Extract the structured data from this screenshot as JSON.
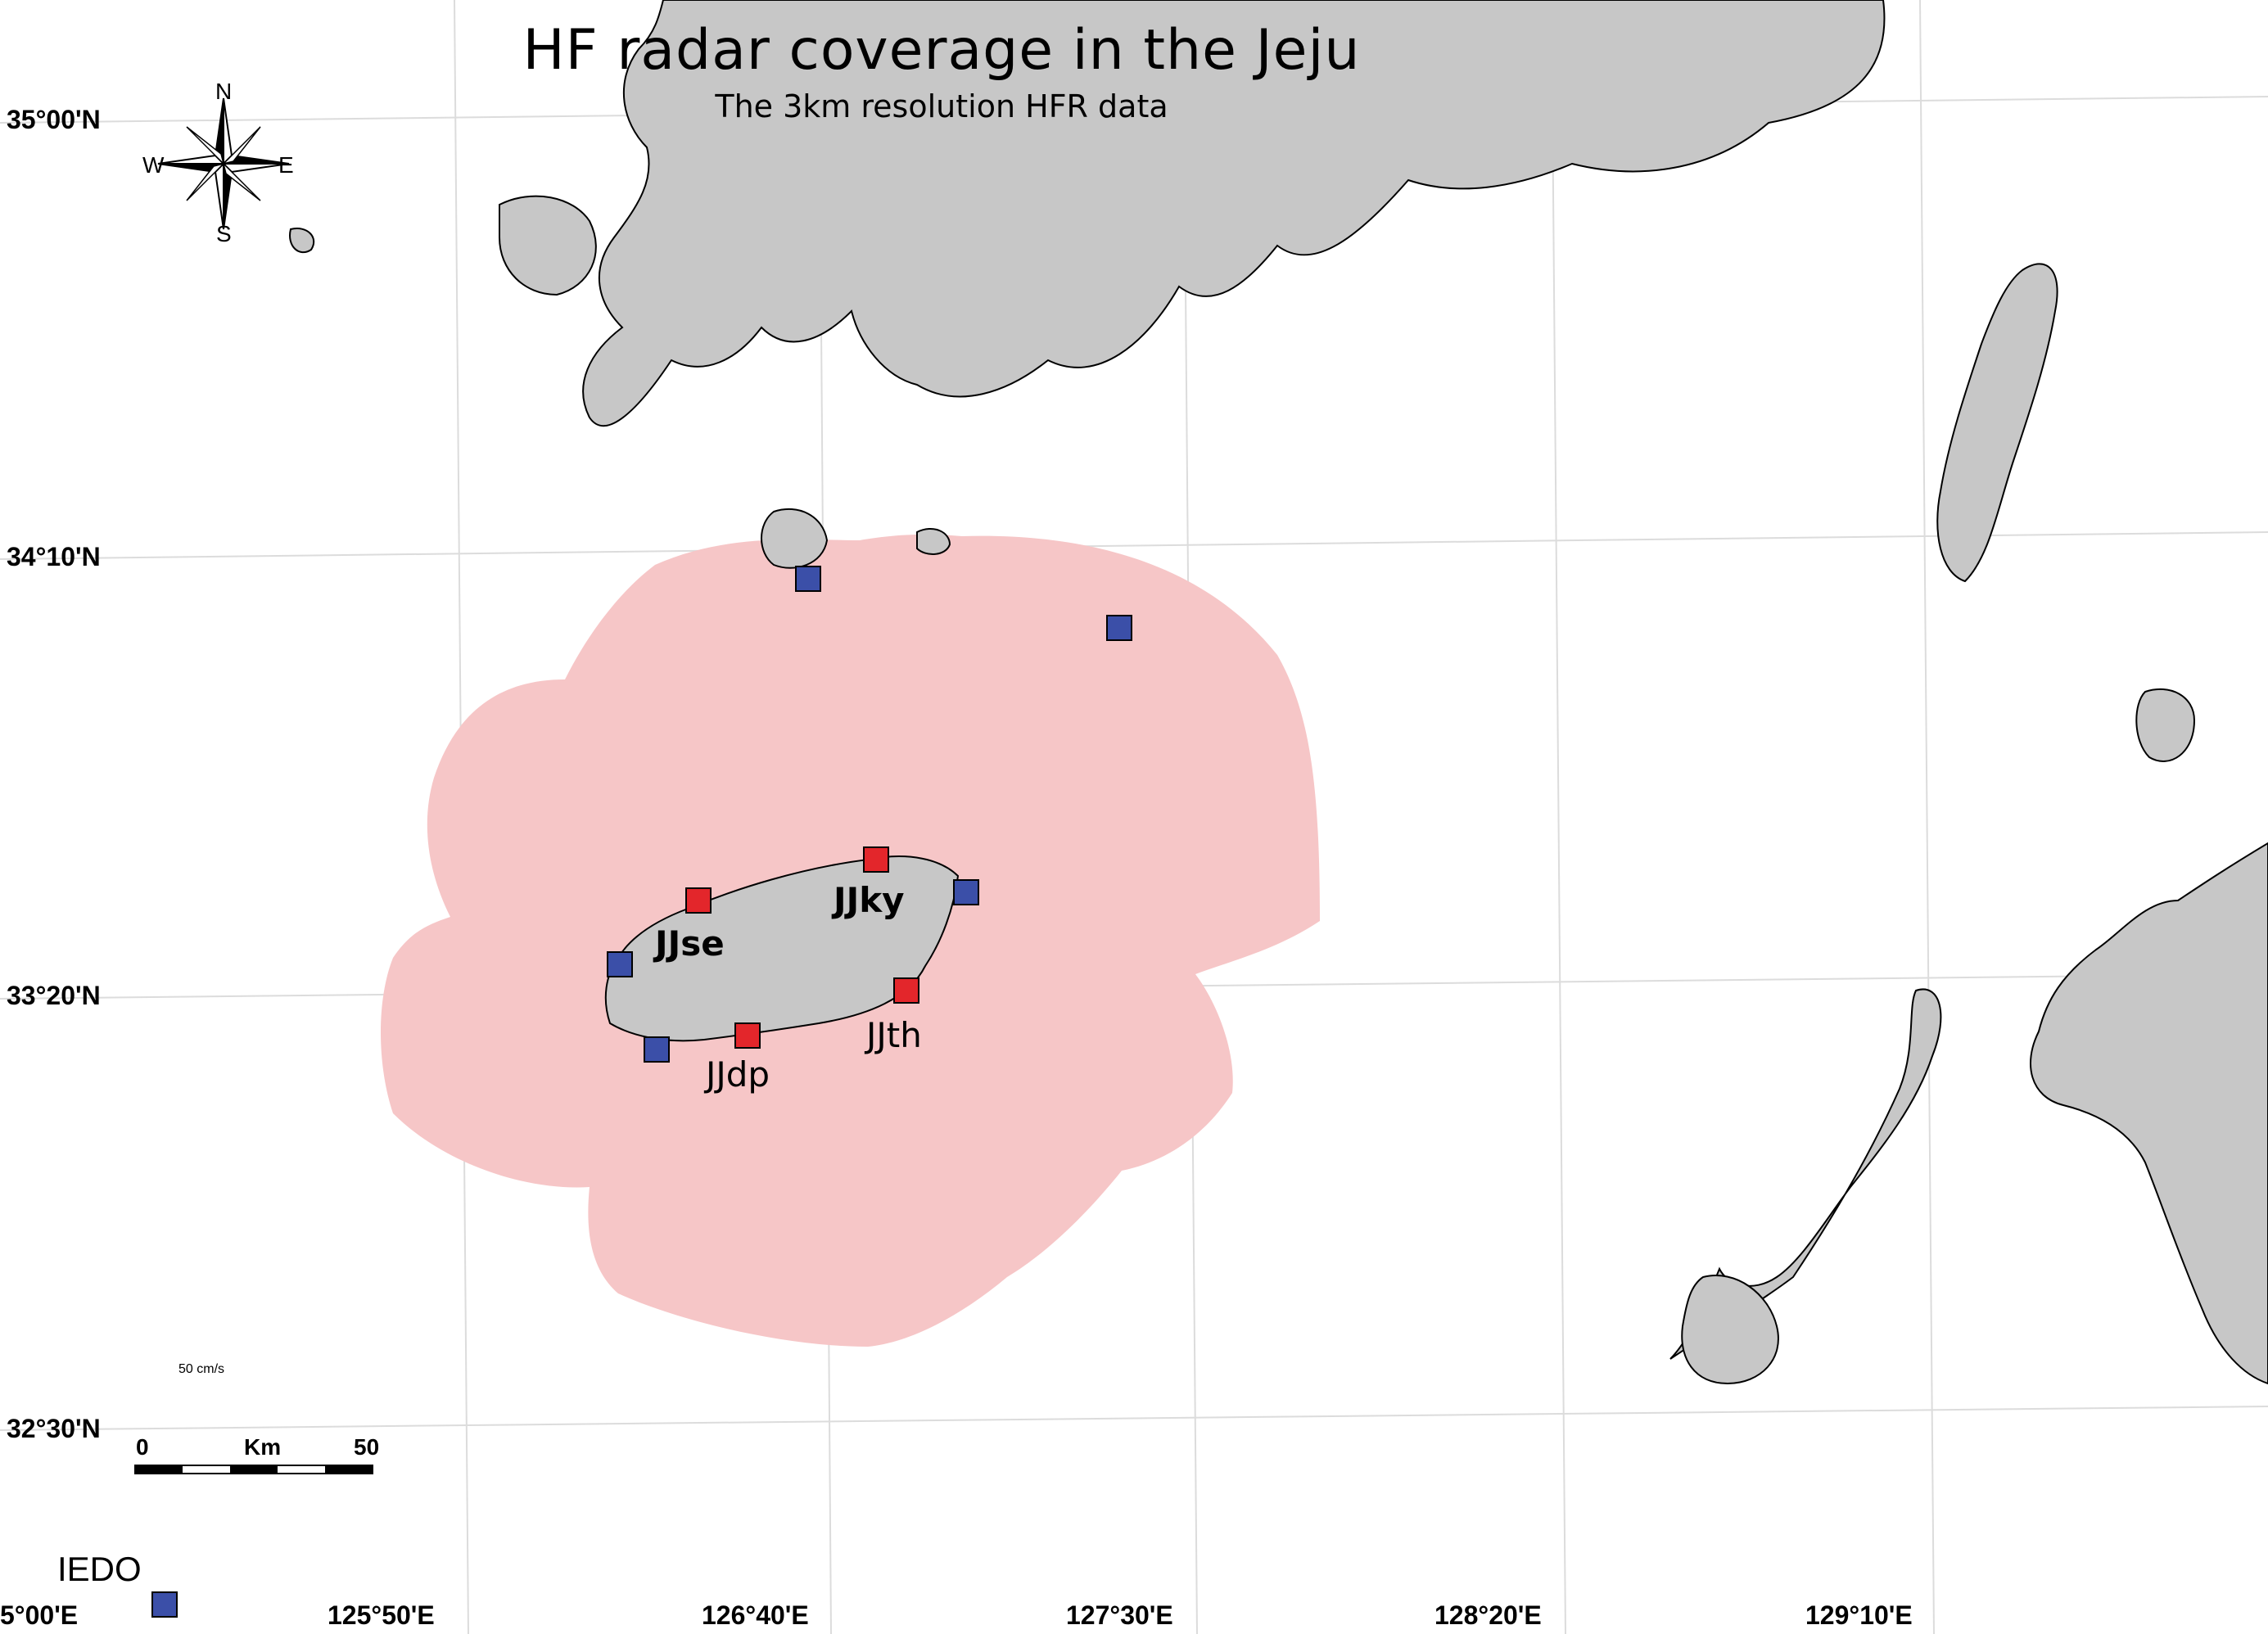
{
  "map": {
    "title": "HF radar coverage in the Jeju",
    "subtitle": "The 3km resolution HFR data",
    "lat_labels": [
      "35°00'N",
      "34°10'N",
      "33°20'N",
      "32°30'N"
    ],
    "lon_labels": [
      "5°00'E",
      "125°50'E",
      "126°40'E",
      "127°30'E",
      "128°20'E",
      "129°10'E"
    ],
    "compass": {
      "n": "N",
      "s": "S",
      "e": "E",
      "w": "W"
    },
    "vector_scale": "50 cm/s",
    "scale_bar": {
      "start": "0",
      "unit": "Km",
      "end": "50"
    },
    "legend": {
      "label": "IEDO",
      "color": "#3b4fa8"
    },
    "stations": [
      {
        "name": "JJse",
        "bold": true
      },
      {
        "name": "JJky",
        "bold": true
      },
      {
        "name": "JJth",
        "bold": false
      },
      {
        "name": "JJdp",
        "bold": false
      }
    ],
    "colors": {
      "land": "#c7c7c7",
      "coverage": "#f6c6c7",
      "station_red": "#e3262b",
      "station_blue": "#3b4fa8",
      "grid": "#dcdcdc"
    }
  }
}
